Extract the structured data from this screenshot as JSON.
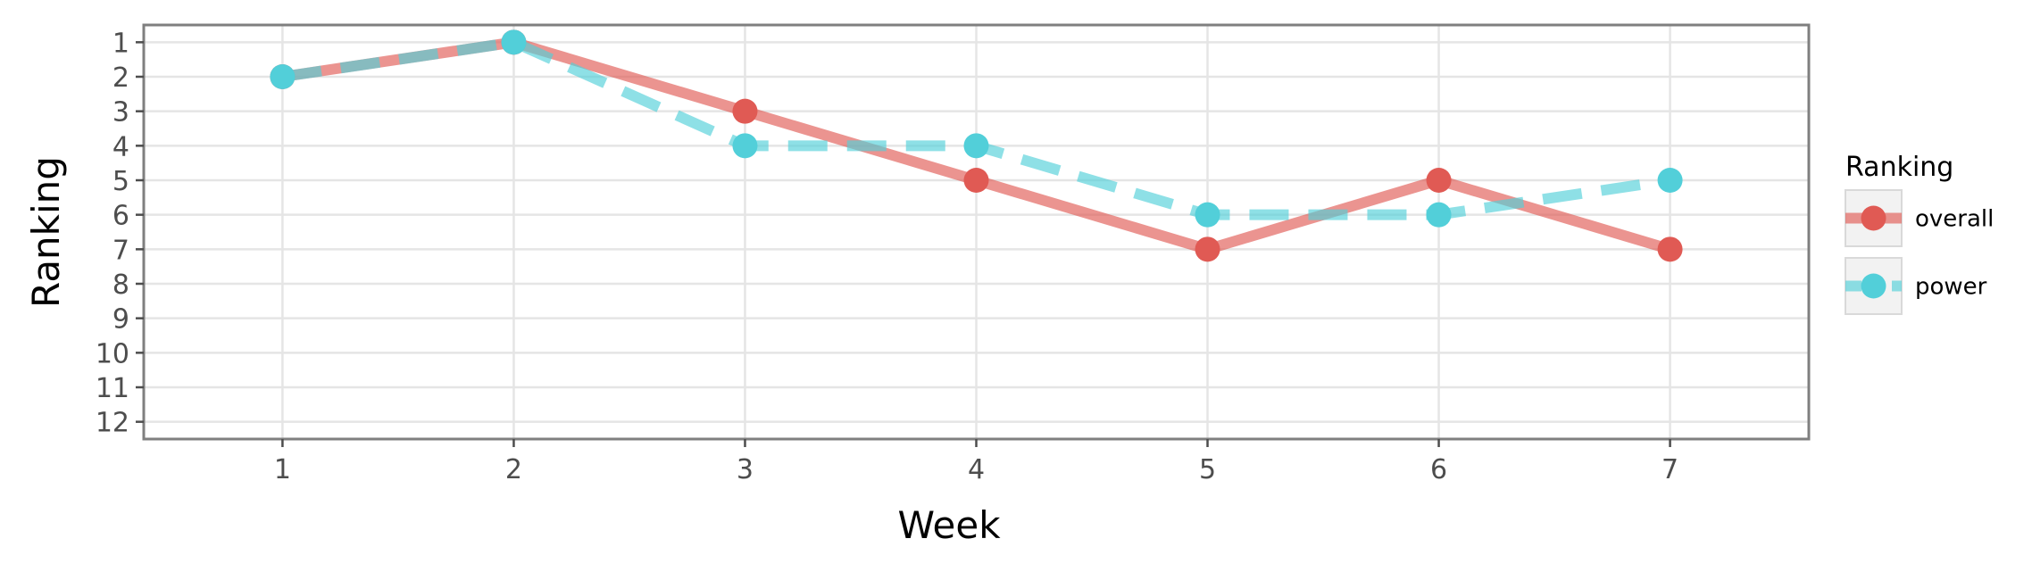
{
  "chart_data": {
    "type": "line",
    "xlabel": "Week",
    "ylabel": "Ranking",
    "x": [
      1,
      2,
      3,
      4,
      5,
      6,
      7
    ],
    "xlim": [
      0.4,
      7.6
    ],
    "ylim": [
      12.5,
      0.5
    ],
    "y_reversed": true,
    "x_ticks": [
      "1",
      "2",
      "3",
      "4",
      "5",
      "6",
      "7"
    ],
    "y_ticks": [
      "1",
      "2",
      "3",
      "4",
      "5",
      "6",
      "7",
      "8",
      "9",
      "10",
      "11",
      "12"
    ],
    "grid": true,
    "legend": {
      "title": "Ranking",
      "position": "right"
    },
    "series": [
      {
        "name": "overall",
        "values": [
          2,
          1,
          3,
          5,
          7,
          5,
          7
        ],
        "color": "#e05a54",
        "line_style": "solid"
      },
      {
        "name": "power",
        "values": [
          2,
          1,
          4,
          4,
          6,
          6,
          5
        ],
        "color": "#52cfd9",
        "line_style": "dashed"
      }
    ]
  }
}
